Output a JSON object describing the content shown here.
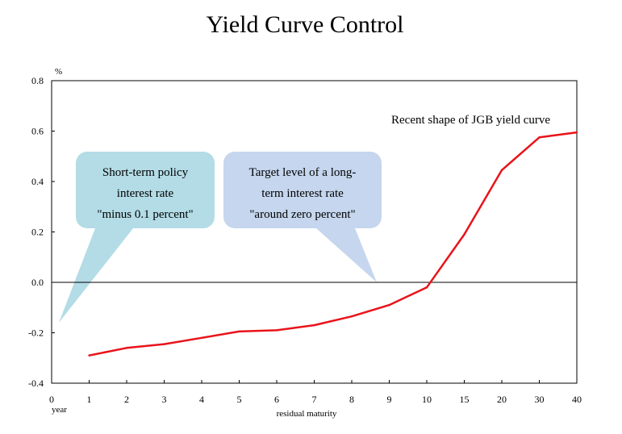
{
  "chart_data": {
    "type": "line",
    "title": "Yield Curve Control",
    "ylabel_unit": "%",
    "xlabel": "residual maturity",
    "x_unit_label": "year",
    "ylim": [
      -0.4,
      0.8
    ],
    "y_ticks": [
      "0.8",
      "0.6",
      "0.4",
      "0.2",
      "0.0",
      "-0.2",
      "-0.4"
    ],
    "x_ticks": [
      "0",
      "1",
      "2",
      "3",
      "4",
      "5",
      "6",
      "7",
      "8",
      "9",
      "10",
      "15",
      "20",
      "30",
      "40"
    ],
    "series": [
      {
        "color": "#e8141b",
        "points": [
          {
            "x": 1,
            "y": -0.29
          },
          {
            "x": 2,
            "y": -0.26
          },
          {
            "x": 3,
            "y": -0.245
          },
          {
            "x": 4,
            "y": -0.22
          },
          {
            "x": 5,
            "y": -0.195
          },
          {
            "x": 6,
            "y": -0.19
          },
          {
            "x": 7,
            "y": -0.17
          },
          {
            "x": 8,
            "y": -0.135
          },
          {
            "x": 9,
            "y": -0.09
          },
          {
            "x": 10,
            "y": -0.02
          },
          {
            "x": 15,
            "y": 0.19
          },
          {
            "x": 20,
            "y": 0.445
          },
          {
            "x": 30,
            "y": 0.575
          },
          {
            "x": 40,
            "y": 0.595
          }
        ]
      }
    ],
    "annotation": "Recent shape of JGB yield curve",
    "callouts": [
      {
        "lines": [
          "Short-term policy",
          "interest rate",
          "\"minus 0.1 percent\""
        ],
        "color": "#b3dce6"
      },
      {
        "lines": [
          "Target level of a long-",
          "term interest rate",
          "\"around zero percent\""
        ],
        "color": "#c5d6ee"
      }
    ]
  }
}
